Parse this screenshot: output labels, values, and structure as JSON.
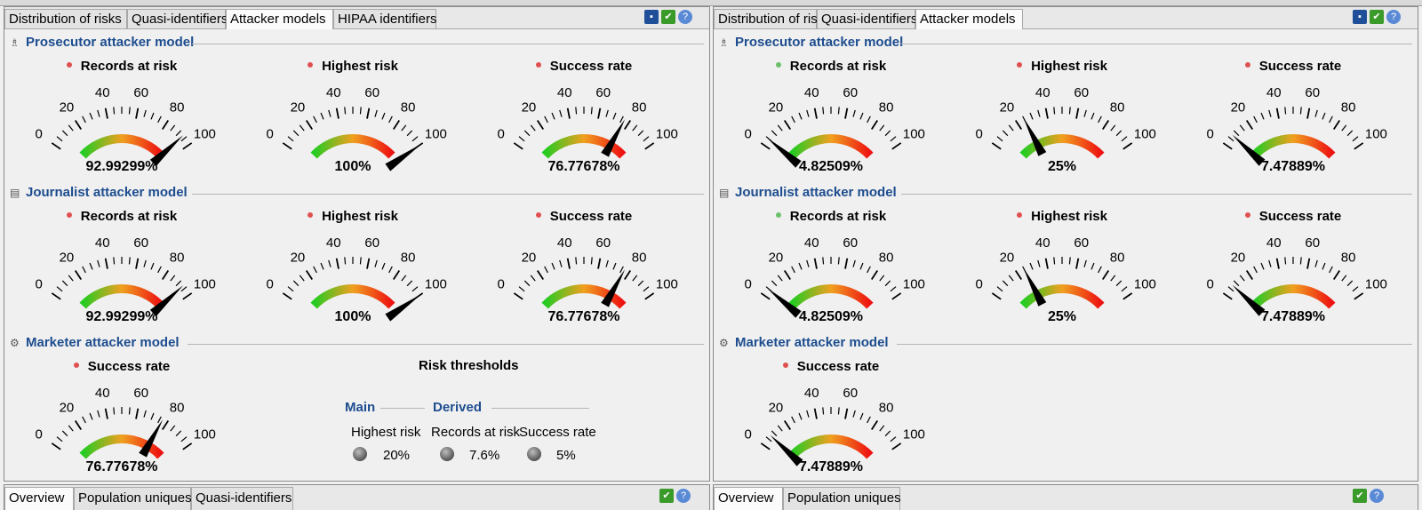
{
  "left_panel": {
    "tabs": [
      "Distribution of risks",
      "Quasi-identifiers",
      "Attacker models",
      "HIPAA identifiers"
    ],
    "active_tab": 2,
    "sections": {
      "prosecutor": {
        "title": "Prosecutor attacker model",
        "gauges": [
          {
            "label": "Records at risk",
            "value_text": "92.99299%",
            "value": 92.99299,
            "status_color": "#e05050"
          },
          {
            "label": "Highest risk",
            "value_text": "100%",
            "value": 100,
            "status_color": "#e05050"
          },
          {
            "label": "Success rate",
            "value_text": "76.77678%",
            "value": 76.77678,
            "status_color": "#e05050"
          }
        ]
      },
      "journalist": {
        "title": "Journalist attacker model",
        "gauges": [
          {
            "label": "Records at risk",
            "value_text": "92.99299%",
            "value": 92.99299,
            "status_color": "#e05050"
          },
          {
            "label": "Highest risk",
            "value_text": "100%",
            "value": 100,
            "status_color": "#e05050"
          },
          {
            "label": "Success rate",
            "value_text": "76.77678%",
            "value": 76.77678,
            "status_color": "#e05050"
          }
        ]
      },
      "marketer": {
        "title": "Marketer attacker model",
        "gauges": [
          {
            "label": "Success rate",
            "value_text": "76.77678%",
            "value": 76.77678,
            "status_color": "#e05050"
          }
        ]
      }
    },
    "thresholds": {
      "title": "Risk thresholds",
      "main_header": "Main",
      "derived_header": "Derived",
      "items": [
        {
          "label": "Highest risk",
          "value": "20%"
        },
        {
          "label": "Records at risk",
          "value": "7.6%"
        },
        {
          "label": "Success rate",
          "value": "5%"
        }
      ]
    },
    "bottom_tabs": [
      "Overview",
      "Population uniques",
      "Quasi-identifiers"
    ]
  },
  "right_panel": {
    "tabs": [
      "Distribution of risks",
      "Quasi-identifiers",
      "Attacker models"
    ],
    "active_tab": 2,
    "sections": {
      "prosecutor": {
        "title": "Prosecutor attacker model",
        "gauges": [
          {
            "label": "Records at risk",
            "value_text": "4.82509%",
            "value": 4.82509,
            "status_color": "#6cc06c"
          },
          {
            "label": "Highest risk",
            "value_text": "25%",
            "value": 25,
            "status_color": "#e05050"
          },
          {
            "label": "Success rate",
            "value_text": "7.47889%",
            "value": 7.47889,
            "status_color": "#e05050"
          }
        ]
      },
      "journalist": {
        "title": "Journalist attacker model",
        "gauges": [
          {
            "label": "Records at risk",
            "value_text": "4.82509%",
            "value": 4.82509,
            "status_color": "#6cc06c"
          },
          {
            "label": "Highest risk",
            "value_text": "25%",
            "value": 25,
            "status_color": "#e05050"
          },
          {
            "label": "Success rate",
            "value_text": "7.47889%",
            "value": 7.47889,
            "status_color": "#e05050"
          }
        ]
      },
      "marketer": {
        "title": "Marketer attacker model",
        "gauges": [
          {
            "label": "Success rate",
            "value_text": "7.47889%",
            "value": 7.47889,
            "status_color": "#e05050"
          }
        ]
      }
    },
    "bottom_tabs": [
      "Overview",
      "Population uniques"
    ]
  },
  "gauge_scale": {
    "min": 0,
    "max": 100,
    "tick_labels": [
      "0",
      "20",
      "40",
      "60",
      "80",
      "100"
    ]
  },
  "toolbar_icons": [
    "save-icon",
    "apply-check-icon",
    "help-icon"
  ],
  "colors": {
    "section_title": "#1d4d8f",
    "gauge_low": "#22cc22",
    "gauge_mid": "#f0a020",
    "gauge_high": "#ee1111"
  }
}
